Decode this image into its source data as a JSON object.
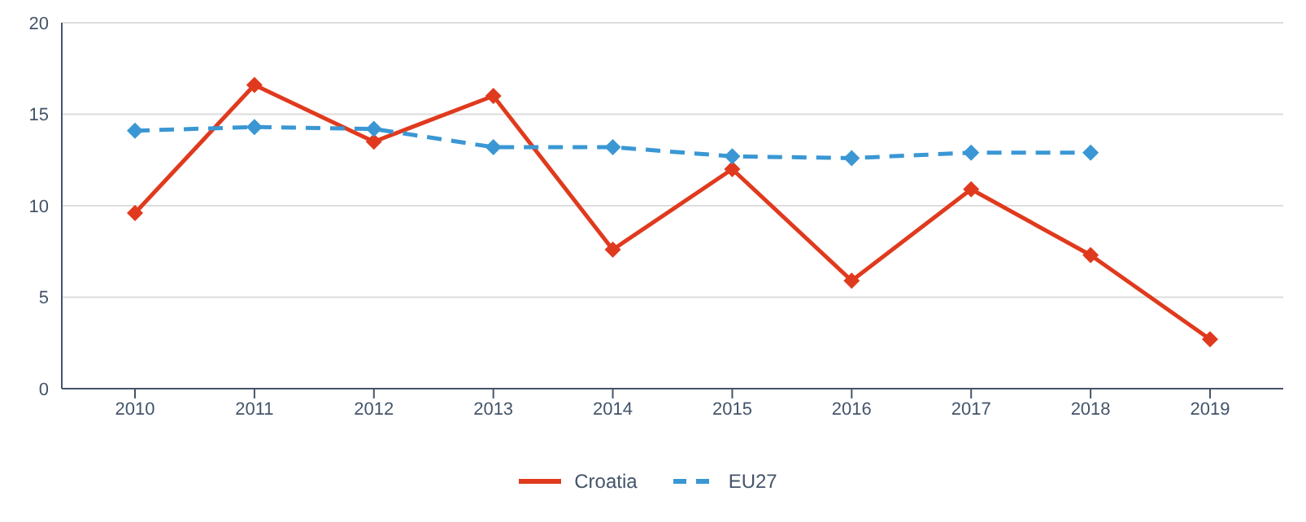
{
  "chart_data": {
    "type": "line",
    "categories": [
      "2010",
      "2011",
      "2012",
      "2013",
      "2014",
      "2015",
      "2016",
      "2017",
      "2018",
      "2019"
    ],
    "series": [
      {
        "name": "Croatia",
        "color": "#e03a1e",
        "line_style": "solid",
        "values": [
          9.6,
          16.6,
          13.5,
          16.0,
          7.6,
          12.0,
          5.9,
          10.9,
          7.3,
          2.7
        ]
      },
      {
        "name": "EU27",
        "color": "#3a97d4",
        "line_style": "dashed",
        "values": [
          14.1,
          14.3,
          14.2,
          13.2,
          13.2,
          12.7,
          12.6,
          12.9,
          12.9,
          null
        ]
      }
    ],
    "ylim": [
      0,
      20
    ],
    "yticks": [
      0,
      5,
      10,
      15,
      20
    ],
    "grid": "y",
    "legend": "bottom",
    "marker": "diamond"
  }
}
